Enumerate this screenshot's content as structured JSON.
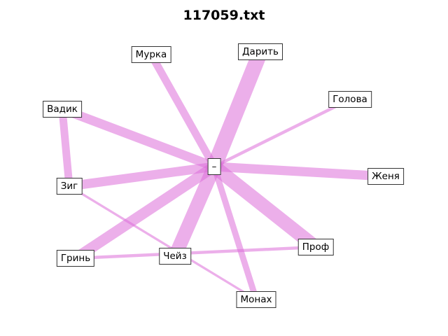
{
  "title": "117059.txt",
  "edge_color": "#dc6ed9",
  "nodes": [
    {
      "id": "center",
      "label": "–"
    },
    {
      "id": "murka",
      "label": "Мурка"
    },
    {
      "id": "darit",
      "label": "Дарить"
    },
    {
      "id": "golova",
      "label": "Голова"
    },
    {
      "id": "vadik",
      "label": "Вадик"
    },
    {
      "id": "zhenya",
      "label": "Женя"
    },
    {
      "id": "zig",
      "label": "Зиг"
    },
    {
      "id": "prof",
      "label": "Проф"
    },
    {
      "id": "grin",
      "label": "Гринь"
    },
    {
      "id": "cheiz",
      "label": "Чейз"
    },
    {
      "id": "monakh",
      "label": "Монах"
    }
  ],
  "edges": [
    {
      "source": "center",
      "target": "darit",
      "weight": 10
    },
    {
      "source": "center",
      "target": "murka",
      "weight": 5
    },
    {
      "source": "center",
      "target": "golova",
      "weight": 2
    },
    {
      "source": "center",
      "target": "vadik",
      "weight": 6
    },
    {
      "source": "center",
      "target": "zhenya",
      "weight": 6
    },
    {
      "source": "center",
      "target": "zig",
      "weight": 6
    },
    {
      "source": "center",
      "target": "prof",
      "weight": 9
    },
    {
      "source": "center",
      "target": "grin",
      "weight": 7
    },
    {
      "source": "center",
      "target": "cheiz",
      "weight": 9
    },
    {
      "source": "center",
      "target": "monakh",
      "weight": 4
    },
    {
      "source": "vadik",
      "target": "zig",
      "weight": 5
    },
    {
      "source": "zig",
      "target": "monakh",
      "weight": 1.5
    },
    {
      "source": "grin",
      "target": "prof",
      "weight": 2
    }
  ]
}
